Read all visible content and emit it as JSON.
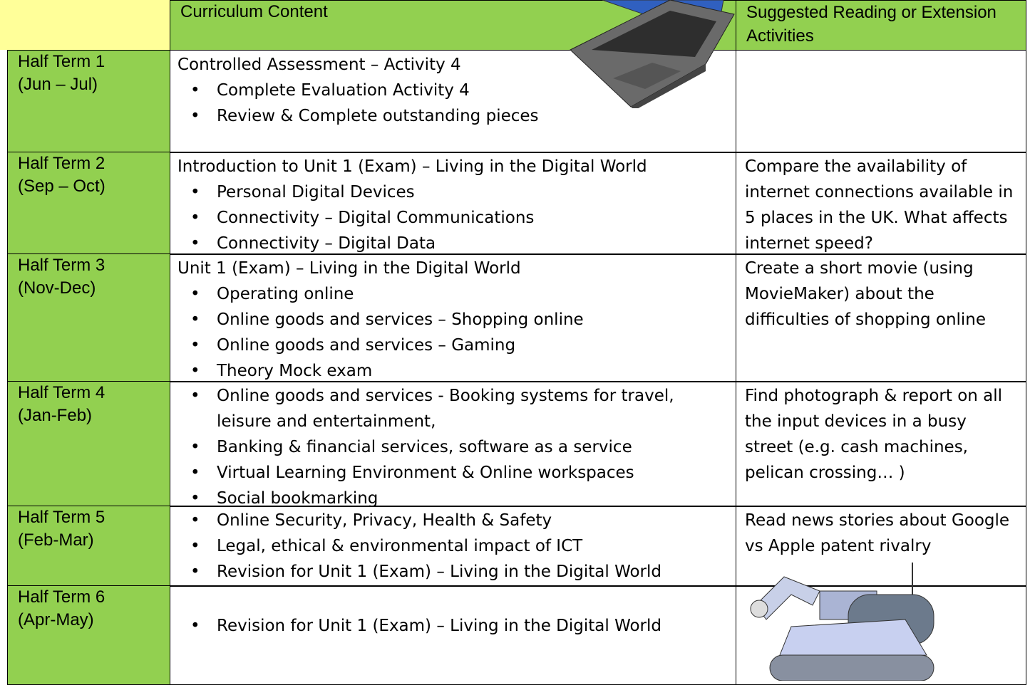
{
  "table": {
    "header": [
      "Curriculum Content",
      "Suggested Reading or Extension Activities"
    ],
    "rows": [
      {
        "term": "Half Term 1",
        "dates": "(Jun – Jul)",
        "intro": "Controlled Assessment – Activity 4",
        "bullets": [
          "Complete Evaluation Activity 4",
          "Review & Complete outstanding pieces"
        ]
      },
      {
        "term": "Half Term 2",
        "dates": "(Sep – Oct)",
        "intro": "Introduction to Unit 1 (Exam) – Living in the Digital World",
        "bullets": [
          "Personal Digital Devices",
          "Connectivity – Digital Communications",
          "Connectivity – Digital Data"
        ],
        "reading": "Compare the availability of internet connections available in 5 places in the UK. What affects internet speed?"
      },
      {
        "term": "Half Term 3",
        "dates": "(Nov-Dec)",
        "intro": "Unit 1 (Exam) – Living in the Digital World",
        "bullets": [
          "Operating online",
          "Online goods and services – Shopping online",
          "Online goods and services – Gaming",
          "Theory Mock exam"
        ],
        "reading": "Create a short movie (using MovieMaker) about the difficulties of shopping online"
      },
      {
        "term": "Half Term 4",
        "dates": "(Jan-Feb)",
        "bullets": [
          "Online goods and services - Booking systems for travel, leisure and entertainment,",
          "Banking & financial services, software as a service",
          "Virtual Learning Environment & Online workspaces",
          "Social bookmarking"
        ],
        "reading": "Find photograph & report on all the input devices in a busy street (e.g. cash machines, pelican crossing… )"
      },
      {
        "term": "Half Term 5",
        "dates": "(Feb-Mar)",
        "bullets": [
          "Online Security, Privacy,  Health & Safety",
          "Legal, ethical & environmental impact of ICT",
          "Revision for Unit 1 (Exam) – Living in the Digital World"
        ],
        "reading": "Read news stories about Google vs Apple patent rivalry"
      },
      {
        "term": "Half Term 6",
        "dates": "(Apr-May)",
        "bullets": [
          "Revision for Unit 1 (Exam) – Living in the Digital World"
        ],
        "bulletTop": true
      }
    ]
  }
}
